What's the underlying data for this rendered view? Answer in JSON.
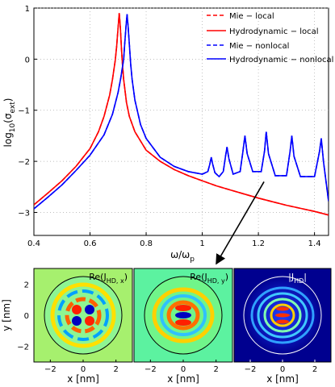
{
  "chart_data": [
    {
      "type": "line",
      "xlabel": "ω/ω",
      "xlabel_sub": "p",
      "ylabel": "log",
      "ylabel_sub": "10",
      "ylabel_tail": "(σ",
      "ylabel_sub2": "ext",
      "ylabel_end": ")",
      "xlim": [
        0.4,
        1.45
      ],
      "ylim": [
        -3.45,
        1.0
      ],
      "grid": true,
      "legend_position": "top-right",
      "xticks": [
        0.4,
        0.6,
        0.8,
        1.0,
        1.2,
        1.4
      ],
      "xtick_labels": [
        "0.4",
        "0.6",
        "0.8",
        "1",
        "1.2",
        "1.4"
      ],
      "yticks": [
        1,
        0,
        -1,
        -2,
        -3
      ],
      "ytick_labels": [
        "1",
        "0",
        "−1",
        "−2",
        "−3"
      ],
      "series": [
        {
          "name": "Mie − local",
          "color": "#ff0000",
          "dash": "dashed",
          "x": [
            0.4,
            0.45,
            0.5,
            0.55,
            0.6,
            0.63,
            0.65,
            0.67,
            0.68,
            0.69,
            0.695,
            0.7,
            0.704,
            0.708,
            0.712,
            0.716,
            0.72,
            0.73,
            0.74,
            0.76,
            0.8,
            0.85,
            0.9,
            0.95,
            1.0,
            1.05,
            1.1,
            1.15,
            1.2,
            1.25,
            1.3,
            1.35,
            1.4,
            1.45
          ],
          "y": [
            -2.85,
            -2.62,
            -2.38,
            -2.1,
            -1.75,
            -1.42,
            -1.12,
            -0.7,
            -0.4,
            -0.02,
            0.25,
            0.62,
            0.9,
            0.62,
            0.2,
            -0.12,
            -0.4,
            -0.85,
            -1.12,
            -1.42,
            -1.78,
            -2.0,
            -2.16,
            -2.28,
            -2.38,
            -2.48,
            -2.56,
            -2.64,
            -2.72,
            -2.79,
            -2.86,
            -2.92,
            -2.98,
            -3.05
          ]
        },
        {
          "name": "Hydrodynamic − local",
          "color": "#ff0000",
          "dash": "solid",
          "x": [
            0.4,
            0.45,
            0.5,
            0.55,
            0.6,
            0.63,
            0.65,
            0.67,
            0.68,
            0.69,
            0.695,
            0.7,
            0.704,
            0.708,
            0.712,
            0.716,
            0.72,
            0.73,
            0.74,
            0.76,
            0.8,
            0.85,
            0.9,
            0.95,
            1.0,
            1.05,
            1.1,
            1.15,
            1.2,
            1.25,
            1.3,
            1.35,
            1.4,
            1.45
          ],
          "y": [
            -2.85,
            -2.62,
            -2.38,
            -2.1,
            -1.75,
            -1.42,
            -1.12,
            -0.7,
            -0.4,
            -0.02,
            0.25,
            0.62,
            0.9,
            0.62,
            0.2,
            -0.12,
            -0.4,
            -0.85,
            -1.12,
            -1.42,
            -1.78,
            -2.0,
            -2.16,
            -2.28,
            -2.38,
            -2.48,
            -2.56,
            -2.64,
            -2.72,
            -2.79,
            -2.86,
            -2.92,
            -2.98,
            -3.05
          ]
        },
        {
          "name": "Mie − nonlocal",
          "color": "#0000ff",
          "dash": "dashed",
          "x": [
            0.4,
            0.45,
            0.5,
            0.55,
            0.6,
            0.65,
            0.68,
            0.7,
            0.71,
            0.72,
            0.724,
            0.728,
            0.732,
            0.736,
            0.74,
            0.745,
            0.75,
            0.76,
            0.78,
            0.8,
            0.85,
            0.9,
            0.95,
            1.0,
            1.02,
            1.027,
            1.032,
            1.037,
            1.045,
            1.06,
            1.075,
            1.083,
            1.088,
            1.095,
            1.11,
            1.135,
            1.145,
            1.152,
            1.16,
            1.18,
            1.21,
            1.222,
            1.228,
            1.236,
            1.26,
            1.3,
            1.313,
            1.319,
            1.327,
            1.35,
            1.4,
            1.418,
            1.424,
            1.432,
            1.45
          ],
          "y": [
            -2.93,
            -2.7,
            -2.46,
            -2.18,
            -1.88,
            -1.48,
            -1.08,
            -0.65,
            -0.35,
            0.0,
            0.32,
            0.62,
            0.88,
            0.62,
            0.3,
            -0.1,
            -0.4,
            -0.8,
            -1.28,
            -1.55,
            -1.92,
            -2.1,
            -2.2,
            -2.25,
            -2.2,
            -2.05,
            -1.92,
            -2.05,
            -2.22,
            -2.3,
            -2.2,
            -1.9,
            -1.72,
            -1.95,
            -2.25,
            -2.2,
            -1.8,
            -1.5,
            -1.85,
            -2.2,
            -2.2,
            -1.8,
            -1.42,
            -1.85,
            -2.28,
            -2.28,
            -1.8,
            -1.5,
            -1.9,
            -2.3,
            -2.3,
            -1.8,
            -1.55,
            -2.0,
            -2.78
          ]
        },
        {
          "name": "Hydrodynamic − nonlocal",
          "color": "#0000ff",
          "dash": "solid",
          "x": [
            0.4,
            0.45,
            0.5,
            0.55,
            0.6,
            0.65,
            0.68,
            0.7,
            0.71,
            0.72,
            0.724,
            0.728,
            0.732,
            0.736,
            0.74,
            0.745,
            0.75,
            0.76,
            0.78,
            0.8,
            0.85,
            0.9,
            0.95,
            1.0,
            1.02,
            1.027,
            1.032,
            1.037,
            1.045,
            1.06,
            1.075,
            1.083,
            1.088,
            1.095,
            1.11,
            1.135,
            1.145,
            1.152,
            1.16,
            1.18,
            1.21,
            1.222,
            1.228,
            1.236,
            1.26,
            1.3,
            1.313,
            1.319,
            1.327,
            1.35,
            1.4,
            1.418,
            1.424,
            1.432,
            1.45
          ],
          "y": [
            -2.93,
            -2.7,
            -2.46,
            -2.18,
            -1.88,
            -1.48,
            -1.08,
            -0.65,
            -0.35,
            0.0,
            0.32,
            0.62,
            0.88,
            0.62,
            0.3,
            -0.1,
            -0.4,
            -0.8,
            -1.28,
            -1.55,
            -1.92,
            -2.1,
            -2.2,
            -2.25,
            -2.2,
            -2.05,
            -1.92,
            -2.05,
            -2.22,
            -2.3,
            -2.2,
            -1.9,
            -1.72,
            -1.95,
            -2.25,
            -2.2,
            -1.8,
            -1.5,
            -1.85,
            -2.2,
            -2.2,
            -1.8,
            -1.42,
            -1.85,
            -2.28,
            -2.28,
            -1.8,
            -1.5,
            -1.9,
            -2.3,
            -2.3,
            -1.8,
            -1.55,
            -2.0,
            -2.78
          ]
        }
      ],
      "annotation_arrow": {
        "from": [
          1.22,
          -2.4
        ],
        "to": "lower panels"
      }
    },
    {
      "type": "heatmap",
      "panels": [
        {
          "title": "Re(J",
          "title_sub": "HD, x",
          "title_end": ")",
          "background": "#a6f06e",
          "theme": "dark"
        },
        {
          "title": "Re(J",
          "title_sub": "HD, y",
          "title_end": ")",
          "background": "#5cf2a0",
          "theme": "dark"
        },
        {
          "title": "|J",
          "title_sub": "HD",
          "title_end": "|",
          "background": "#00008f",
          "theme": "light"
        }
      ],
      "xlabel": "x [nm]",
      "ylabel": "y [nm]",
      "xlim": [
        -3,
        3
      ],
      "ylim": [
        -3,
        3
      ],
      "xticks": [
        -2,
        0,
        2
      ],
      "xtick_labels": [
        "−2",
        "0",
        "2"
      ],
      "yticks": [
        2,
        0,
        -2
      ],
      "ytick_labels": [
        "2",
        "0",
        "−2"
      ],
      "circle_radius": 2.5
    }
  ]
}
